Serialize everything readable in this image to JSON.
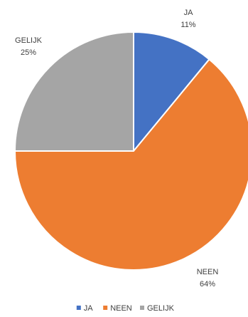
{
  "chart_data": {
    "type": "pie",
    "slices": [
      {
        "label": "JA",
        "value": 11,
        "value_text": "11%",
        "color": "#4472C4"
      },
      {
        "label": "NEEN",
        "value": 64,
        "value_text": "64%",
        "color": "#ED7D31"
      },
      {
        "label": "GELIJK",
        "value": 25,
        "value_text": "25%",
        "color": "#A5A5A5"
      }
    ],
    "start_angle_deg": 0,
    "direction": "clockwise",
    "legend_position": "bottom",
    "label_color": "#404040"
  }
}
